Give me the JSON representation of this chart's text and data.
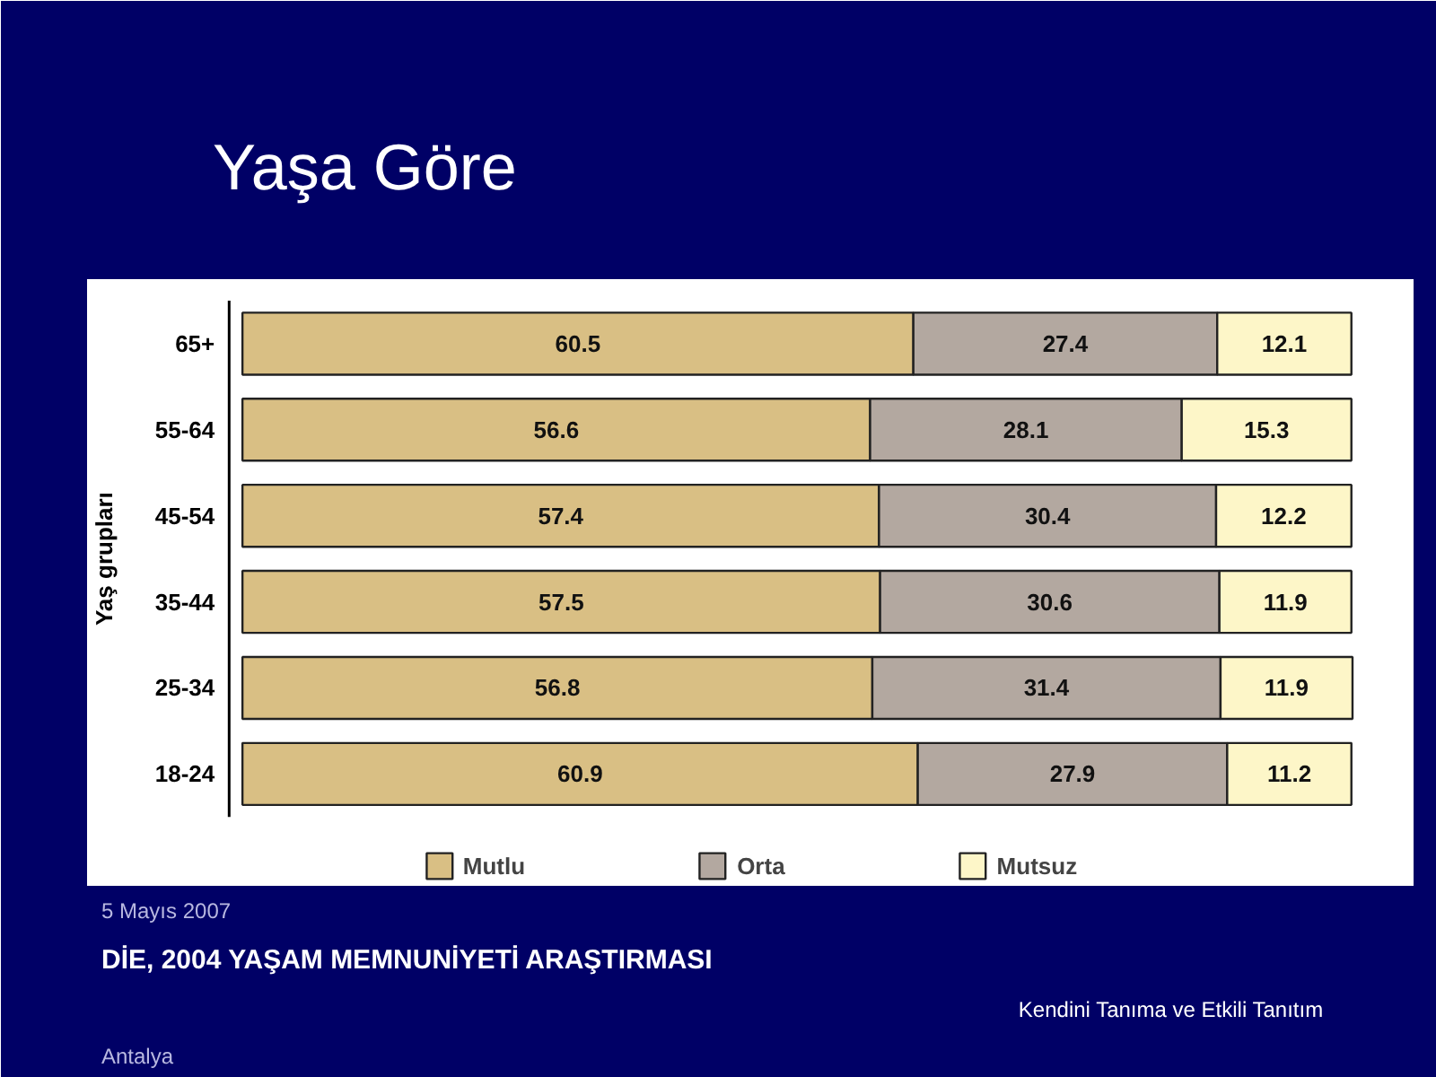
{
  "chart_data": {
    "type": "bar",
    "orientation": "horizontal",
    "stacked": true,
    "title": "Yaşa Göre",
    "ylabel": "Yaş grupları",
    "categories": [
      "65+",
      "55-64",
      "45-54",
      "35-44",
      "25-34",
      "18-24"
    ],
    "series": [
      {
        "name": "Mutlu",
        "color": "#d9bf84",
        "values": [
          60.5,
          56.6,
          57.4,
          57.5,
          56.8,
          60.9
        ]
      },
      {
        "name": "Orta",
        "color": "#b3a8a0",
        "values": [
          27.4,
          28.1,
          30.4,
          30.6,
          31.4,
          27.9
        ]
      },
      {
        "name": "Mutsuz",
        "color": "#fdf6c8",
        "values": [
          12.1,
          15.3,
          12.2,
          11.9,
          11.9,
          11.2
        ]
      }
    ],
    "data_labels": true,
    "legend": "bottom",
    "grid": false,
    "annotations": [
      "5 Mayıs 2007",
      "DİE, 2004 YAŞAM MEMNUNİYETİ ARAŞTIRMASI",
      "Kendini Tanıma ve Etkili Tanıtım",
      "Antalya"
    ]
  }
}
